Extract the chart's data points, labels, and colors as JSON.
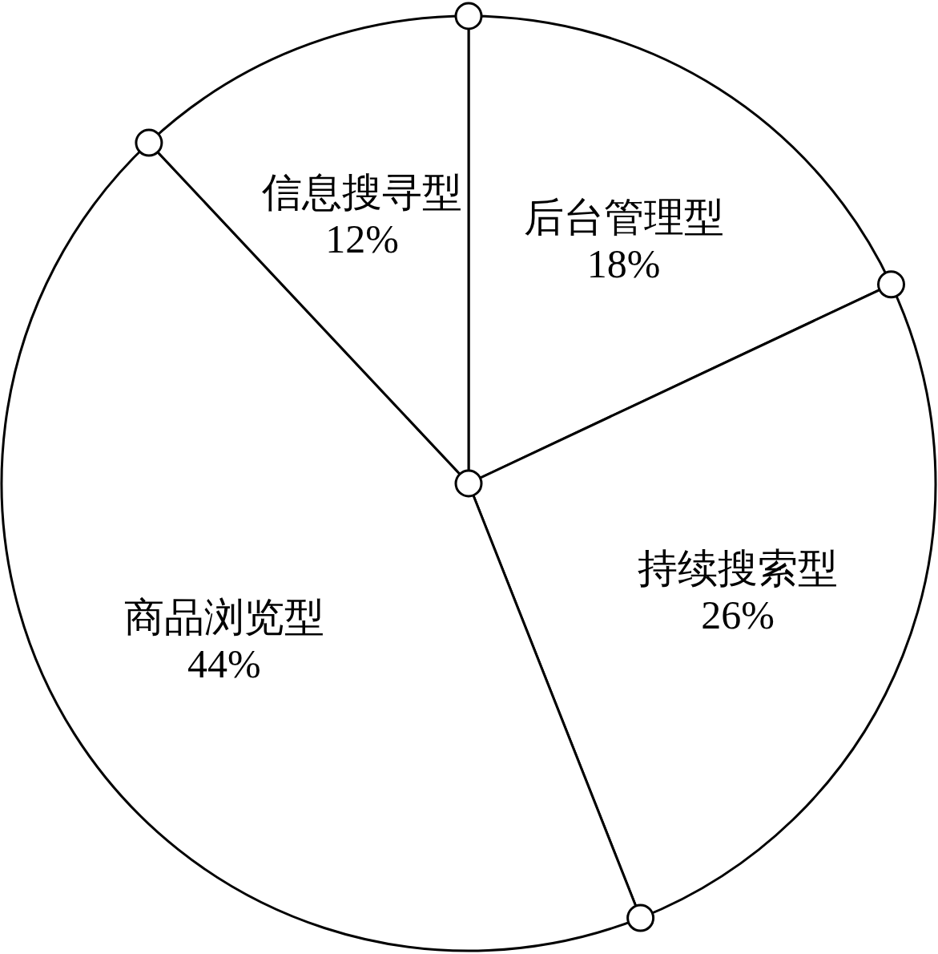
{
  "chart_data": {
    "type": "pie",
    "categories": [
      "后台管理型",
      "持续搜索型",
      "商品浏览型",
      "信息搜寻型"
    ],
    "values": [
      18,
      26,
      44,
      12
    ],
    "value_labels": [
      "18%",
      "26%",
      "44%",
      "12%"
    ],
    "colors": [
      "#ffffff",
      "#ffffff",
      "#ffffff",
      "#ffffff"
    ]
  }
}
